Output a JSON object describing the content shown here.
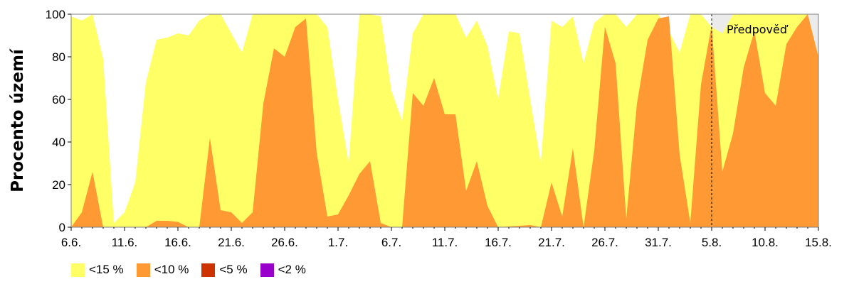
{
  "chart_data": {
    "type": "area",
    "ylabel": "Procento území",
    "ylim": [
      0,
      100
    ],
    "yticks": [
      0,
      20,
      40,
      60,
      80,
      100
    ],
    "x_tick_labels": [
      "6.6.",
      "11.6.",
      "16.6.",
      "21.6.",
      "26.6.",
      "1.7.",
      "6.7.",
      "11.7.",
      "16.7.",
      "21.7.",
      "26.7.",
      "31.7.",
      "5.8.",
      "10.8.",
      "15.8."
    ],
    "x_day_start": 6,
    "x_day_end": 76,
    "forecast_start_day": 66,
    "forecast_label": "Předpověď",
    "colors": {
      "lt15": "#ffff66",
      "lt10": "#ff9933",
      "lt5": "#cc3300",
      "lt2": "#9900cc",
      "forecast_bg": "#ebebeb"
    },
    "legend": [
      {
        "label": "<15 %",
        "color": "#ffff66"
      },
      {
        "label": "<10 %",
        "color": "#ff9933"
      },
      {
        "label": "<5 %",
        "color": "#cc3300"
      },
      {
        "label": "<2 %",
        "color": "#9900cc"
      }
    ],
    "series": [
      {
        "name": "<15 %",
        "points": [
          [
            6,
            99
          ],
          [
            7,
            97
          ],
          [
            8,
            100
          ],
          [
            9,
            79
          ],
          [
            10,
            2
          ],
          [
            11,
            7
          ],
          [
            12,
            21
          ],
          [
            13,
            68
          ],
          [
            14,
            88
          ],
          [
            15,
            89
          ],
          [
            16,
            91
          ],
          [
            17,
            90
          ],
          [
            18,
            97
          ],
          [
            19,
            100
          ],
          [
            20,
            100
          ],
          [
            21,
            91
          ],
          [
            22,
            82
          ],
          [
            23,
            100
          ],
          [
            24,
            100
          ],
          [
            25,
            100
          ],
          [
            26,
            100
          ],
          [
            27,
            100
          ],
          [
            28,
            100
          ],
          [
            29,
            100
          ],
          [
            30,
            94
          ],
          [
            31,
            60
          ],
          [
            32,
            30
          ],
          [
            33,
            100
          ],
          [
            34,
            100
          ],
          [
            35,
            99
          ],
          [
            36,
            64
          ],
          [
            37,
            50
          ],
          [
            38,
            91
          ],
          [
            39,
            100
          ],
          [
            40,
            100
          ],
          [
            41,
            100
          ],
          [
            42,
            100
          ],
          [
            43,
            89
          ],
          [
            44,
            97
          ],
          [
            45,
            85
          ],
          [
            46,
            60
          ],
          [
            47,
            92
          ],
          [
            48,
            91
          ],
          [
            49,
            60
          ],
          [
            50,
            30
          ],
          [
            51,
            97
          ],
          [
            52,
            94
          ],
          [
            53,
            99
          ],
          [
            54,
            77
          ],
          [
            55,
            96
          ],
          [
            56,
            100
          ],
          [
            57,
            100
          ],
          [
            58,
            94
          ],
          [
            59,
            100
          ],
          [
            60,
            100
          ],
          [
            61,
            100
          ],
          [
            62,
            92
          ],
          [
            63,
            82
          ],
          [
            64,
            100
          ],
          [
            65,
            100
          ],
          [
            66,
            94
          ],
          [
            67,
            91
          ],
          [
            68,
            100
          ],
          [
            69,
            100
          ],
          [
            70,
            100
          ],
          [
            71,
            100
          ],
          [
            72,
            100
          ],
          [
            73,
            100
          ],
          [
            74,
            100
          ],
          [
            75,
            100
          ],
          [
            76,
            80
          ]
        ]
      },
      {
        "name": "<10 %",
        "points": [
          [
            6,
            0
          ],
          [
            7,
            7
          ],
          [
            8,
            26
          ],
          [
            9,
            0
          ],
          [
            13,
            0
          ],
          [
            14,
            3
          ],
          [
            15,
            3
          ],
          [
            16,
            2.5
          ],
          [
            17,
            0
          ],
          [
            18,
            0
          ],
          [
            19,
            42
          ],
          [
            20,
            8
          ],
          [
            21,
            7
          ],
          [
            22,
            2
          ],
          [
            23,
            7
          ],
          [
            24,
            58
          ],
          [
            25,
            84
          ],
          [
            26,
            80
          ],
          [
            27,
            94
          ],
          [
            28,
            98
          ],
          [
            29,
            35
          ],
          [
            30,
            5
          ],
          [
            31,
            6
          ],
          [
            32,
            15
          ],
          [
            33,
            25
          ],
          [
            34,
            31
          ],
          [
            35,
            2
          ],
          [
            36,
            0
          ],
          [
            37,
            0
          ],
          [
            38,
            63
          ],
          [
            39,
            57
          ],
          [
            40,
            70
          ],
          [
            41,
            53
          ],
          [
            42,
            53
          ],
          [
            43,
            17
          ],
          [
            44,
            31
          ],
          [
            45,
            10
          ],
          [
            46,
            0
          ],
          [
            49,
            1
          ],
          [
            50,
            0
          ],
          [
            51,
            21
          ],
          [
            52,
            5
          ],
          [
            53,
            37
          ],
          [
            54,
            0
          ],
          [
            55,
            36
          ],
          [
            56,
            94
          ],
          [
            57,
            77
          ],
          [
            58,
            4
          ],
          [
            59,
            58
          ],
          [
            60,
            88
          ],
          [
            61,
            98
          ],
          [
            62,
            99
          ],
          [
            63,
            34
          ],
          [
            64,
            2
          ],
          [
            65,
            67
          ],
          [
            66,
            95
          ],
          [
            67,
            26
          ],
          [
            68,
            44
          ],
          [
            69,
            75
          ],
          [
            70,
            92
          ],
          [
            71,
            63
          ],
          [
            72,
            57
          ],
          [
            73,
            86
          ],
          [
            74,
            94
          ],
          [
            75,
            100
          ],
          [
            76,
            80
          ]
        ]
      },
      {
        "name": "<5 %",
        "points": []
      },
      {
        "name": "<2 %",
        "points": []
      }
    ]
  }
}
